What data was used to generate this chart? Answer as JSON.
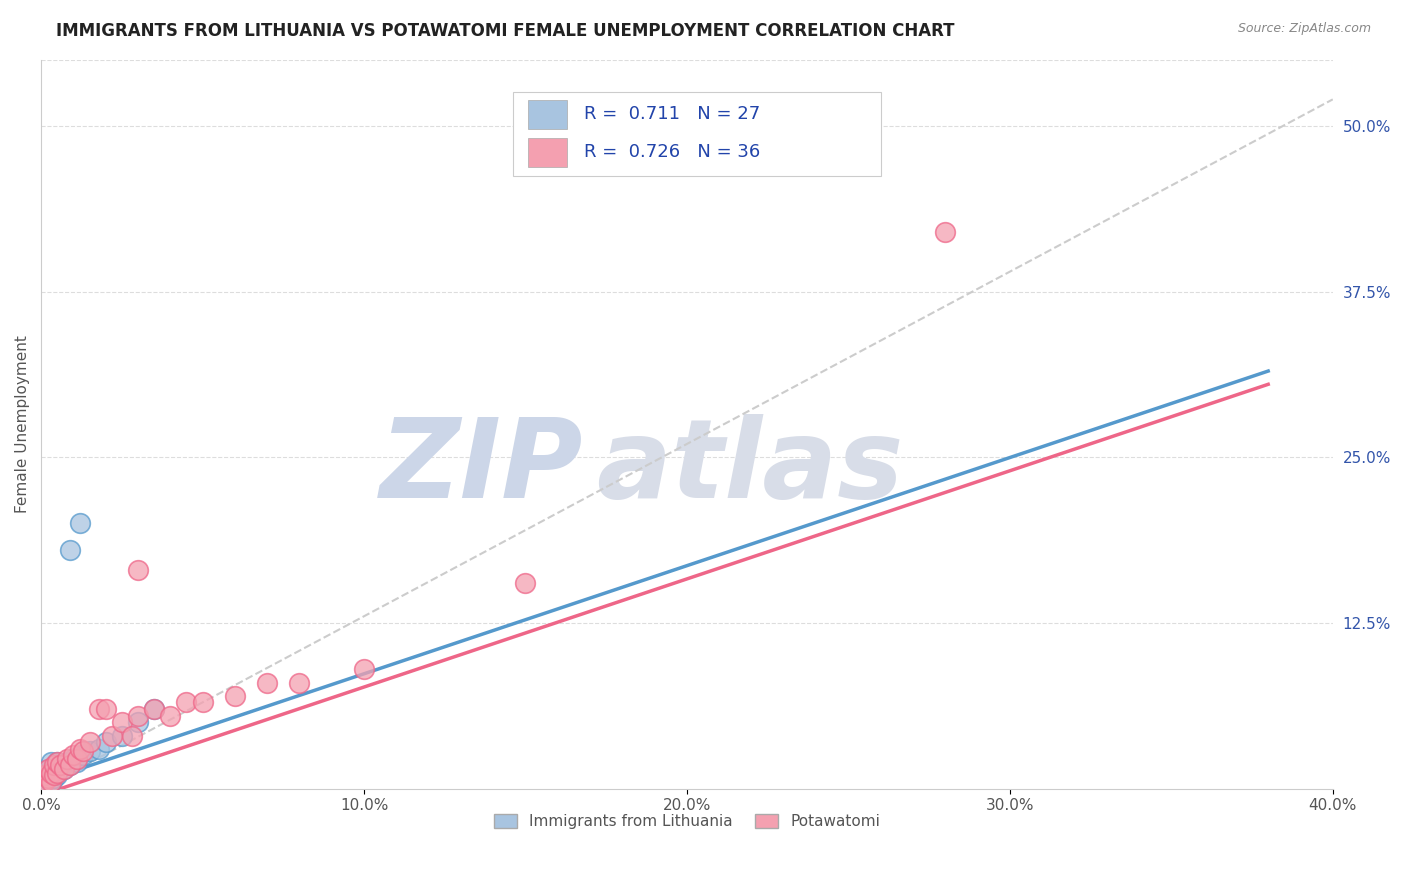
{
  "title": "IMMIGRANTS FROM LITHUANIA VS POTAWATOMI FEMALE UNEMPLOYMENT CORRELATION CHART",
  "source_text": "Source: ZipAtlas.com",
  "ylabel": "Female Unemployment",
  "xlim": [
    0.0,
    0.4
  ],
  "ylim": [
    0.0,
    0.55
  ],
  "xtick_labels": [
    "0.0%",
    "10.0%",
    "20.0%",
    "30.0%",
    "40.0%"
  ],
  "xtick_vals": [
    0.0,
    0.1,
    0.2,
    0.3,
    0.4
  ],
  "ytick_right_labels": [
    "12.5%",
    "25.0%",
    "37.5%",
    "50.0%"
  ],
  "ytick_right_vals": [
    0.125,
    0.25,
    0.375,
    0.5
  ],
  "watermark_zip": "ZIP",
  "watermark_atlas": "atlas",
  "legend_series1_label": "Immigrants from Lithuania",
  "legend_series1_color": "#a8c4e0",
  "legend_series1_R": "0.711",
  "legend_series1_N": "27",
  "legend_series2_label": "Potawatomi",
  "legend_series2_color": "#f4a0b0",
  "legend_series2_R": "0.726",
  "legend_series2_N": "36",
  "blue_scatter_x": [
    0.001,
    0.001,
    0.002,
    0.002,
    0.003,
    0.003,
    0.003,
    0.004,
    0.004,
    0.005,
    0.005,
    0.006,
    0.007,
    0.008,
    0.009,
    0.01,
    0.011,
    0.012,
    0.013,
    0.015,
    0.018,
    0.02,
    0.025,
    0.03,
    0.035,
    0.012,
    0.009
  ],
  "blue_scatter_y": [
    0.005,
    0.01,
    0.008,
    0.015,
    0.005,
    0.01,
    0.02,
    0.008,
    0.015,
    0.01,
    0.02,
    0.015,
    0.015,
    0.02,
    0.018,
    0.022,
    0.02,
    0.025,
    0.025,
    0.028,
    0.03,
    0.035,
    0.04,
    0.05,
    0.06,
    0.2,
    0.18
  ],
  "pink_scatter_x": [
    0.001,
    0.001,
    0.002,
    0.002,
    0.003,
    0.003,
    0.004,
    0.004,
    0.005,
    0.005,
    0.006,
    0.007,
    0.008,
    0.009,
    0.01,
    0.011,
    0.012,
    0.013,
    0.015,
    0.018,
    0.02,
    0.022,
    0.025,
    0.028,
    0.03,
    0.035,
    0.04,
    0.045,
    0.05,
    0.06,
    0.07,
    0.08,
    0.1,
    0.15,
    0.28,
    0.03
  ],
  "pink_scatter_y": [
    0.005,
    0.01,
    0.008,
    0.015,
    0.005,
    0.012,
    0.01,
    0.018,
    0.012,
    0.02,
    0.018,
    0.015,
    0.022,
    0.018,
    0.025,
    0.022,
    0.03,
    0.028,
    0.035,
    0.06,
    0.06,
    0.04,
    0.05,
    0.04,
    0.055,
    0.06,
    0.055,
    0.065,
    0.065,
    0.07,
    0.08,
    0.08,
    0.09,
    0.155,
    0.42,
    0.165
  ],
  "blue_line_x": [
    0.0,
    0.38
  ],
  "blue_line_y": [
    0.005,
    0.315
  ],
  "pink_line_x": [
    0.0,
    0.38
  ],
  "pink_line_y": [
    -0.005,
    0.305
  ],
  "dash_line_x": [
    0.0,
    0.4
  ],
  "dash_line_y": [
    0.0,
    0.52
  ],
  "blue_line_color": "#5599cc",
  "pink_line_color": "#ee6688",
  "dash_color": "#cccccc",
  "grid_color": "#dddddd",
  "background_color": "#ffffff",
  "watermark_color": "#ccd6e8",
  "title_color": "#222222",
  "source_color": "#888888",
  "ylabel_color": "#555555",
  "xtick_color": "#555555",
  "ytick_right_color": "#3355aa"
}
